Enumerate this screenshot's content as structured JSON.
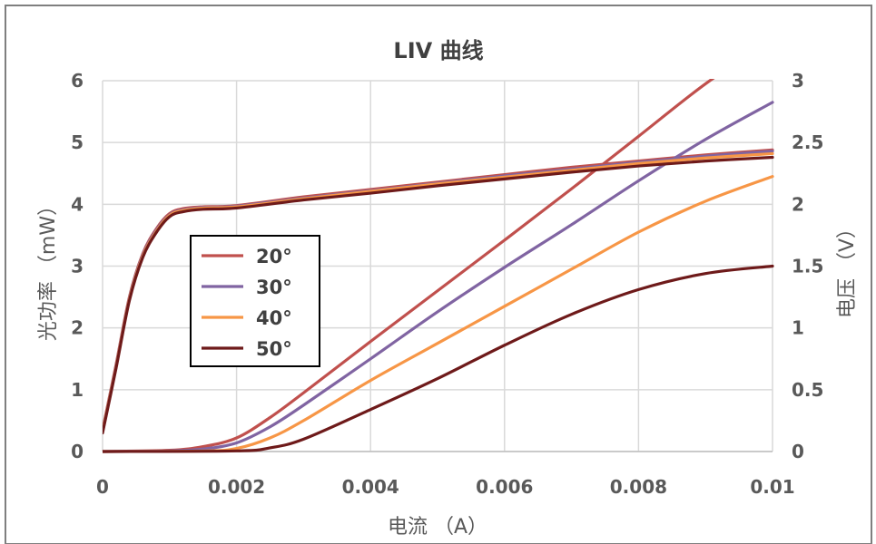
{
  "chart_data": {
    "type": "line",
    "title": "LIV 曲线",
    "xlabel": "电流 （A）",
    "ylabel_left": "光功率 （mW）",
    "ylabel_right": "电压 （V）",
    "xlim": [
      0,
      0.01
    ],
    "ylim_left": [
      0,
      6
    ],
    "ylim_right": [
      0,
      3
    ],
    "x_ticks": [
      0,
      0.002,
      0.004,
      0.006,
      0.008,
      0.01
    ],
    "x_tick_labels": [
      "0",
      "0.002",
      "0.004",
      "0.006",
      "0.008",
      "0.01"
    ],
    "y_left_ticks": [
      0,
      1,
      2,
      3,
      4,
      5,
      6
    ],
    "y_left_tick_labels": [
      "0",
      "1",
      "2",
      "3",
      "4",
      "5",
      "6"
    ],
    "y_right_ticks": [
      0,
      0.5,
      1,
      1.5,
      2,
      2.5,
      3
    ],
    "y_right_tick_labels": [
      "0",
      "0.5",
      "1",
      "1.5",
      "2",
      "2.5",
      "3"
    ],
    "grid": true,
    "legend_position": "left-center",
    "series": [
      {
        "name": "20°",
        "color": "#c0504d",
        "voltage_axis": "left",
        "voltage_points": [
          [
            0,
            0.35
          ],
          [
            0.0002,
            1.4
          ],
          [
            0.0004,
            2.5
          ],
          [
            0.0006,
            3.2
          ],
          [
            0.0008,
            3.6
          ],
          [
            0.001,
            3.85
          ],
          [
            0.0012,
            3.93
          ],
          [
            0.0015,
            3.96
          ],
          [
            0.002,
            3.98
          ],
          [
            0.003,
            4.12
          ],
          [
            0.004,
            4.24
          ],
          [
            0.005,
            4.36
          ],
          [
            0.006,
            4.48
          ],
          [
            0.007,
            4.6
          ],
          [
            0.008,
            4.7
          ],
          [
            0.009,
            4.8
          ],
          [
            0.01,
            4.88
          ]
        ],
        "power_axis": "left",
        "power_points": [
          [
            0,
            0
          ],
          [
            0.001,
            0.02
          ],
          [
            0.0015,
            0.08
          ],
          [
            0.002,
            0.22
          ],
          [
            0.0025,
            0.55
          ],
          [
            0.003,
            0.95
          ],
          [
            0.004,
            1.78
          ],
          [
            0.005,
            2.6
          ],
          [
            0.006,
            3.42
          ],
          [
            0.007,
            4.25
          ],
          [
            0.008,
            5.1
          ],
          [
            0.009,
            5.95
          ],
          [
            0.01,
            6.68
          ]
        ]
      },
      {
        "name": "30°",
        "color": "#8064a2",
        "voltage_axis": "left",
        "voltage_points": [
          [
            0,
            0.33
          ],
          [
            0.0002,
            1.38
          ],
          [
            0.0004,
            2.48
          ],
          [
            0.0006,
            3.18
          ],
          [
            0.0008,
            3.58
          ],
          [
            0.001,
            3.83
          ],
          [
            0.0012,
            3.91
          ],
          [
            0.0015,
            3.95
          ],
          [
            0.002,
            3.97
          ],
          [
            0.003,
            4.1
          ],
          [
            0.004,
            4.22
          ],
          [
            0.005,
            4.34
          ],
          [
            0.006,
            4.46
          ],
          [
            0.007,
            4.57
          ],
          [
            0.008,
            4.68
          ],
          [
            0.009,
            4.78
          ],
          [
            0.01,
            4.86
          ]
        ],
        "power_axis": "left",
        "power_points": [
          [
            0,
            0
          ],
          [
            0.001,
            0.01
          ],
          [
            0.0015,
            0.04
          ],
          [
            0.002,
            0.14
          ],
          [
            0.0025,
            0.4
          ],
          [
            0.003,
            0.75
          ],
          [
            0.004,
            1.5
          ],
          [
            0.005,
            2.26
          ],
          [
            0.006,
            2.98
          ],
          [
            0.007,
            3.67
          ],
          [
            0.008,
            4.38
          ],
          [
            0.009,
            5.05
          ],
          [
            0.01,
            5.65
          ]
        ]
      },
      {
        "name": "40°",
        "color": "#f79646",
        "voltage_axis": "left",
        "voltage_points": [
          [
            0,
            0.32
          ],
          [
            0.0002,
            1.36
          ],
          [
            0.0004,
            2.46
          ],
          [
            0.0006,
            3.16
          ],
          [
            0.0008,
            3.56
          ],
          [
            0.001,
            3.82
          ],
          [
            0.0012,
            3.9
          ],
          [
            0.0015,
            3.94
          ],
          [
            0.002,
            3.96
          ],
          [
            0.003,
            4.09
          ],
          [
            0.004,
            4.21
          ],
          [
            0.005,
            4.33
          ],
          [
            0.006,
            4.44
          ],
          [
            0.007,
            4.55
          ],
          [
            0.008,
            4.66
          ],
          [
            0.009,
            4.75
          ],
          [
            0.01,
            4.82
          ]
        ],
        "power_axis": "left",
        "power_points": [
          [
            0,
            0
          ],
          [
            0.0015,
            0.01
          ],
          [
            0.002,
            0.05
          ],
          [
            0.0025,
            0.22
          ],
          [
            0.003,
            0.5
          ],
          [
            0.004,
            1.15
          ],
          [
            0.005,
            1.75
          ],
          [
            0.006,
            2.35
          ],
          [
            0.007,
            2.95
          ],
          [
            0.008,
            3.55
          ],
          [
            0.009,
            4.05
          ],
          [
            0.01,
            4.45
          ]
        ]
      },
      {
        "name": "50°",
        "color": "#6e1a1a",
        "voltage_axis": "left",
        "voltage_points": [
          [
            0,
            0.3
          ],
          [
            0.0002,
            1.34
          ],
          [
            0.0004,
            2.44
          ],
          [
            0.0006,
            3.14
          ],
          [
            0.0008,
            3.54
          ],
          [
            0.001,
            3.8
          ],
          [
            0.0012,
            3.88
          ],
          [
            0.0015,
            3.92
          ],
          [
            0.002,
            3.94
          ],
          [
            0.003,
            4.07
          ],
          [
            0.004,
            4.18
          ],
          [
            0.005,
            4.3
          ],
          [
            0.006,
            4.41
          ],
          [
            0.007,
            4.52
          ],
          [
            0.008,
            4.62
          ],
          [
            0.009,
            4.7
          ],
          [
            0.01,
            4.76
          ]
        ],
        "power_axis": "left",
        "power_points": [
          [
            0,
            0
          ],
          [
            0.002,
            0.01
          ],
          [
            0.0025,
            0.06
          ],
          [
            0.003,
            0.2
          ],
          [
            0.004,
            0.68
          ],
          [
            0.005,
            1.18
          ],
          [
            0.006,
            1.72
          ],
          [
            0.007,
            2.22
          ],
          [
            0.008,
            2.62
          ],
          [
            0.009,
            2.88
          ],
          [
            0.01,
            3.0
          ]
        ]
      }
    ]
  }
}
